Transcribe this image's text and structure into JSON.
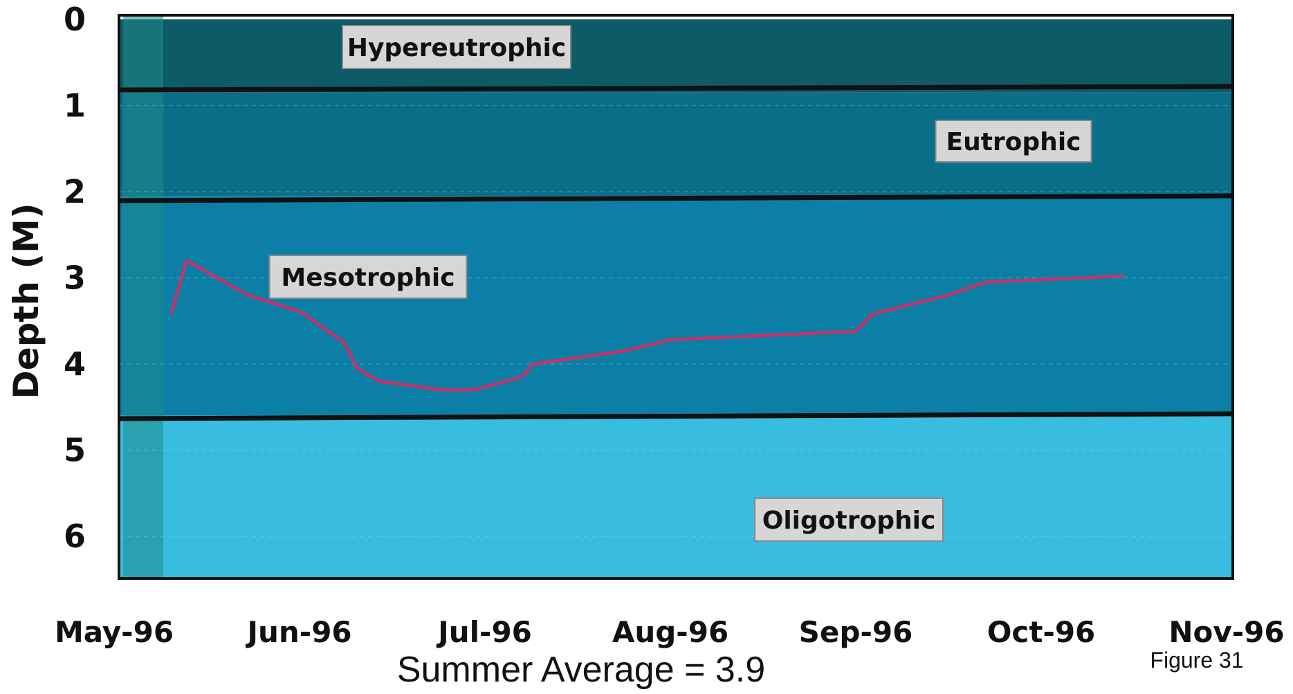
{
  "chart_data": {
    "type": "line",
    "title": "",
    "ylabel": "Depth (M)",
    "xlabel": "",
    "ylim": [
      0,
      6.5
    ],
    "y_inverted": true,
    "yticks": [
      "0",
      "1",
      "2",
      "3",
      "4",
      "5",
      "6"
    ],
    "xticks": [
      "May-96",
      "Jun-96",
      "Jul-96",
      "Aug-96",
      "Sep-96",
      "Oct-96",
      "Nov-96"
    ],
    "zones": [
      {
        "label": "Hypereutrophic",
        "from": 0,
        "to": 0.85,
        "color": "#0d5b66"
      },
      {
        "label": "Eutrophic",
        "from": 0.85,
        "to": 2.05,
        "color": "#0b6f8a"
      },
      {
        "label": "Mesotrophic",
        "from": 2.05,
        "to": 4.6,
        "color": "#0c7fa6"
      },
      {
        "label": "Oligotrophic",
        "from": 4.6,
        "to": 6.5,
        "color": "#38bde0"
      }
    ],
    "series": [
      {
        "color": "#c8326a",
        "x": [
          0.31,
          0.39,
          0.72,
          1.01,
          1.24,
          1.31,
          1.43,
          1.76,
          1.94,
          2.2,
          2.26,
          2.75,
          3.0,
          4.0,
          4.0,
          4.09,
          4.5,
          4.7,
          5.44
        ],
        "y": [
          3.4,
          2.8,
          3.2,
          3.4,
          3.75,
          4.05,
          4.2,
          4.3,
          4.3,
          4.15,
          4.0,
          3.85,
          3.72,
          3.62,
          3.62,
          3.42,
          3.2,
          3.05,
          2.98
        ]
      }
    ],
    "caption": "Summer Average = 3.9",
    "figure_label": "Figure 31"
  }
}
